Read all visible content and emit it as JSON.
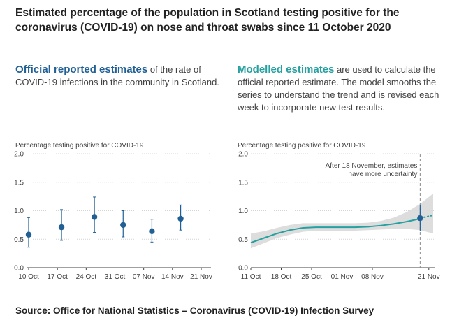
{
  "title": "Estimated percentage of the population in Scotland testing positive for the coronavirus (COVID-19) on nose and throat swabs since 11 October 2020",
  "left_panel": {
    "lead": "Official reported estimates",
    "text": " of the rate of COVID-19 infections in the community in Scotland."
  },
  "right_panel": {
    "lead": "Modelled estimates",
    "text": " are used to calculate the official reported estimate. The model smooths the series to understand the trend and is revised each week to incorporate new test results."
  },
  "source": "Source: Office for National Statistics – Coronavirus (COVID-19) Infection Survey",
  "colors": {
    "official": "#206095",
    "modelled": "#27a0a0",
    "band": "#d9d9d9",
    "axis": "#414042"
  },
  "chart_data": [
    {
      "type": "scatter",
      "title": "Official reported estimates",
      "ylabel": "Percentage testing positive for COVID-19",
      "ylim": [
        0,
        2.0
      ],
      "yticks": [
        "0.0",
        "0.5",
        "1.0",
        "1.5",
        "2.0"
      ],
      "xlim": [
        0,
        42
      ],
      "xticks": [
        {
          "day": 0,
          "label": "10 Oct"
        },
        {
          "day": 7,
          "label": "17 Oct"
        },
        {
          "day": 14,
          "label": "24 Oct"
        },
        {
          "day": 21,
          "label": "31 Oct"
        },
        {
          "day": 28,
          "label": "07 Nov"
        },
        {
          "day": 35,
          "label": "14 Nov"
        },
        {
          "day": 42,
          "label": "21 Nov"
        }
      ],
      "points": [
        {
          "day": 0,
          "value": 0.58,
          "lower": 0.36,
          "upper": 0.88
        },
        {
          "day": 8,
          "value": 0.71,
          "lower": 0.48,
          "upper": 1.02
        },
        {
          "day": 16,
          "value": 0.89,
          "lower": 0.62,
          "upper": 1.24
        },
        {
          "day": 23,
          "value": 0.75,
          "lower": 0.54,
          "upper": 1.0
        },
        {
          "day": 30,
          "value": 0.64,
          "lower": 0.45,
          "upper": 0.85
        },
        {
          "day": 37,
          "value": 0.86,
          "lower": 0.66,
          "upper": 1.1
        }
      ]
    },
    {
      "type": "line",
      "title": "Modelled estimates",
      "ylabel": "Percentage testing positive for COVID-19",
      "ylim": [
        0,
        2.0
      ],
      "yticks": [
        "0.0",
        "0.5",
        "1.0",
        "1.5",
        "2.0"
      ],
      "xlim": [
        0,
        42
      ],
      "xticks": [
        {
          "day": 0,
          "label": "11 Oct"
        },
        {
          "day": 7,
          "label": "18 Oct"
        },
        {
          "day": 14,
          "label": "25 Oct"
        },
        {
          "day": 21,
          "label": "01 Nov"
        },
        {
          "day": 28,
          "label": "08 Nov"
        },
        {
          "day": 41,
          "label": "21 Nov"
        }
      ],
      "series": {
        "name": "Modelled estimate",
        "days": [
          0,
          3,
          6,
          9,
          12,
          15,
          18,
          21,
          24,
          27,
          30,
          33,
          36,
          39,
          42
        ],
        "values": [
          0.44,
          0.52,
          0.6,
          0.66,
          0.7,
          0.71,
          0.71,
          0.71,
          0.71,
          0.72,
          0.74,
          0.77,
          0.81,
          0.86,
          0.92
        ],
        "lower": [
          0.34,
          0.43,
          0.52,
          0.58,
          0.63,
          0.65,
          0.65,
          0.65,
          0.65,
          0.66,
          0.67,
          0.68,
          0.68,
          0.66,
          0.6
        ],
        "upper": [
          0.6,
          0.64,
          0.7,
          0.75,
          0.78,
          0.78,
          0.78,
          0.78,
          0.78,
          0.79,
          0.82,
          0.88,
          0.98,
          1.12,
          1.3
        ]
      },
      "highlight_point": {
        "day": 39,
        "value": 0.87,
        "lower": 0.65,
        "upper": 1.1
      },
      "divider_day": 39,
      "annotation": [
        "After 18 November, estimates",
        "have more uncertainty"
      ]
    }
  ]
}
